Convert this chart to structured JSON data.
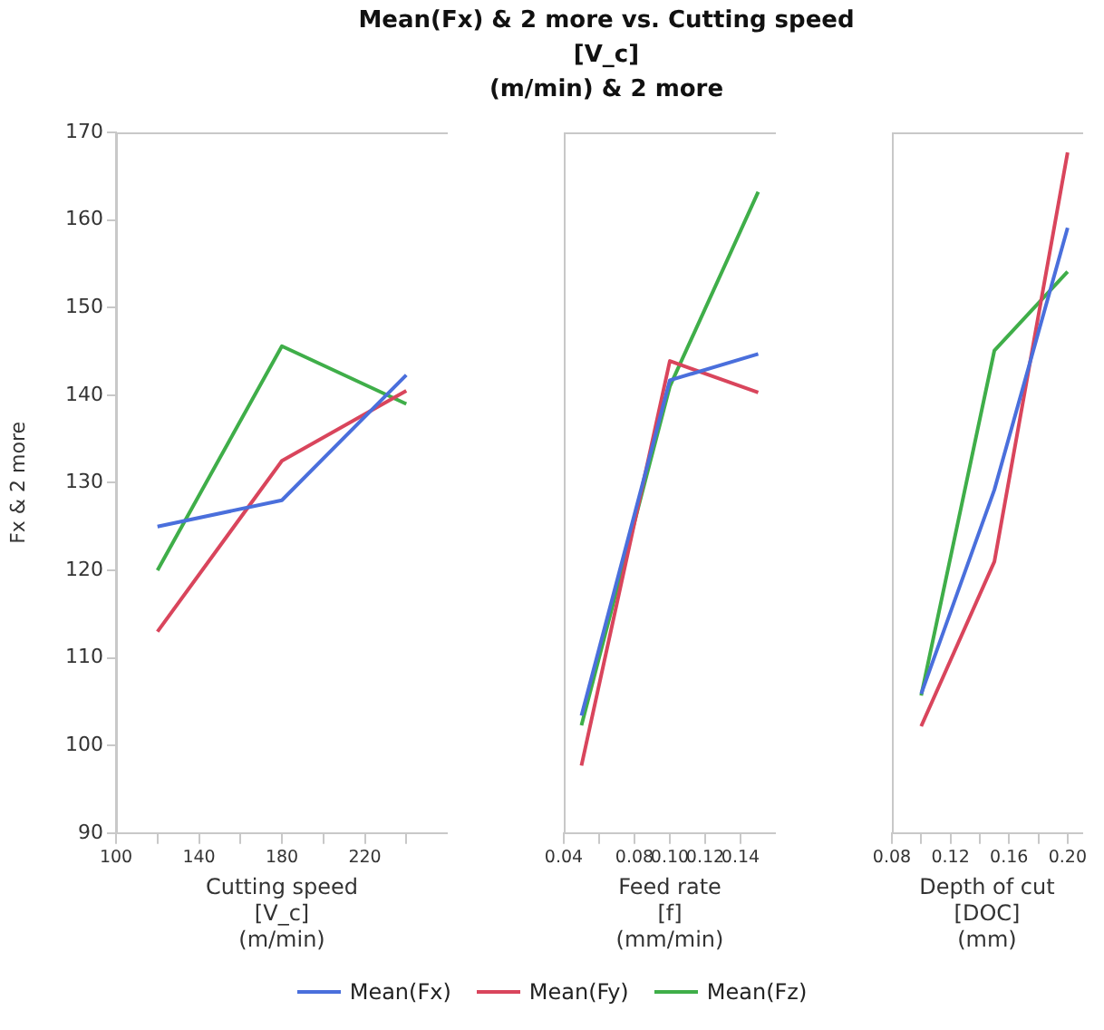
{
  "chart_data": [
    {
      "type": "line",
      "title": "Mean(Fx) & 2 more vs. Cutting speed\n[V_c]\n(m/min) & 2 more",
      "ylabel": "Fx & 2 more",
      "xlabel": "Cutting speed\n[V_c]\n(m/min)",
      "legend": "bottom",
      "x": [
        120,
        180,
        240
      ],
      "xlim": [
        100,
        260
      ],
      "xticks": [
        100,
        {
          "value": 120,
          "label": null
        },
        140,
        {
          "value": 160,
          "label": null
        },
        180,
        {
          "value": 200,
          "label": null
        },
        220,
        {
          "value": 240,
          "label": null
        }
      ],
      "ylim": [
        90,
        170
      ],
      "yticks": [
        90,
        100,
        110,
        120,
        130,
        140,
        150,
        160,
        170
      ],
      "series": [
        {
          "name": "Mean(Fx)",
          "color": "#4a6fdc",
          "values": [
            125,
            128,
            142.3
          ]
        },
        {
          "name": "Mean(Fy)",
          "color": "#d9455c",
          "values": [
            113,
            132.5,
            140.5
          ]
        },
        {
          "name": "Mean(Fz)",
          "color": "#3fae49",
          "values": [
            120,
            145.6,
            139
          ]
        }
      ]
    },
    {
      "type": "line",
      "xlabel": "Feed rate\n[f]\n(mm/min)",
      "tick_labels": "x",
      "x": [
        0.05,
        0.1,
        0.15
      ],
      "xlim": [
        0.04,
        0.16
      ],
      "xticks": [
        0.04,
        {
          "value": 0.06,
          "label": null
        },
        0.08,
        {
          "value": 0.1,
          "label": "0.10"
        },
        0.12,
        0.14
      ],
      "ylim": [
        90,
        170
      ],
      "yticks": [
        90,
        100,
        110,
        120,
        130,
        140,
        150,
        160,
        170
      ],
      "series": [
        {
          "color": "#4a6fdc",
          "values": [
            103.4,
            141.7,
            144.7
          ]
        },
        {
          "color": "#d9455c",
          "values": [
            97.7,
            143.9,
            140.3
          ]
        },
        {
          "color": "#3fae49",
          "values": [
            102.3,
            141,
            163.2
          ]
        }
      ]
    },
    {
      "type": "line",
      "xlabel": "Depth of cut\n[DOC]\n(mm)",
      "tick_labels": "x",
      "x": [
        0.1,
        0.15,
        0.2
      ],
      "xlim": [
        0.08,
        0.21
      ],
      "xticks": [
        0.08,
        {
          "value": 0.1,
          "label": null
        },
        0.12,
        {
          "value": 0.14,
          "label": null
        },
        0.16,
        {
          "value": 0.18,
          "label": null
        },
        {
          "value": 0.2,
          "label": "0.20"
        }
      ],
      "ylim": [
        90,
        170
      ],
      "yticks": [
        90,
        100,
        110,
        120,
        130,
        140,
        150,
        160,
        170
      ],
      "series": [
        {
          "color": "#4a6fdc",
          "values": [
            105.9,
            129.2,
            159.1
          ]
        },
        {
          "color": "#d9455c",
          "values": [
            102.2,
            121,
            167.7
          ]
        },
        {
          "color": "#3fae49",
          "values": [
            105.7,
            145.1,
            154.1
          ]
        }
      ]
    }
  ]
}
